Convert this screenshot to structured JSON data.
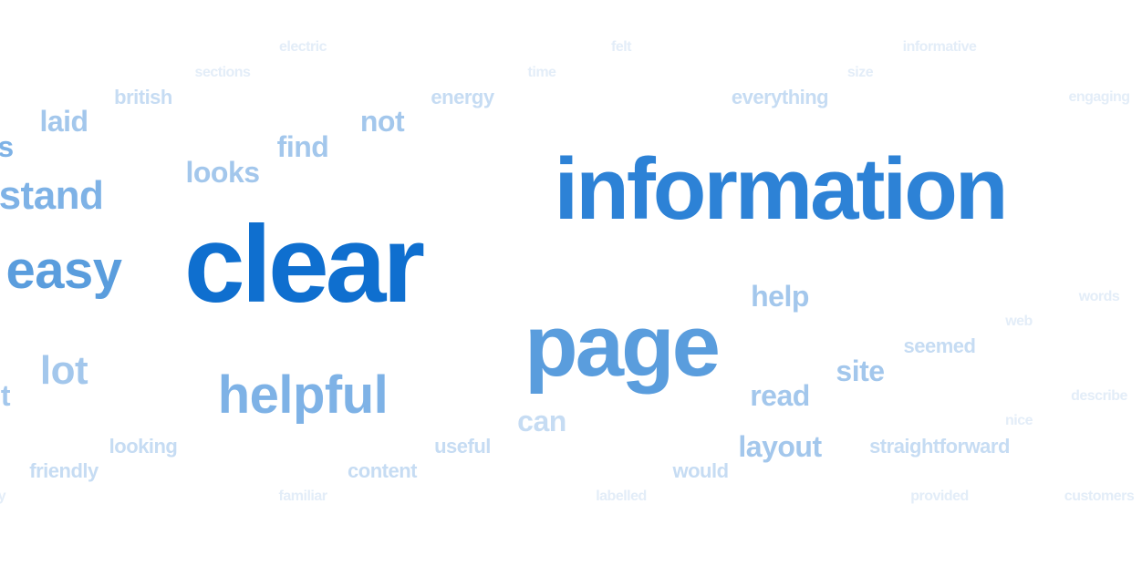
{
  "colors": {
    "background": "#ffffff",
    "shade_1": "#e3edf8",
    "shade_2": "#c6dcf3",
    "shade_3": "#a3c7ec",
    "shade_4": "#7eb2e6",
    "shade_5": "#5a9ddd",
    "shade_6": "#2d82d6",
    "shade_7": "#0f6fcf"
  },
  "words": {
    "electric": "electric",
    "felt": "felt",
    "informative": "informative",
    "sections": "sections",
    "time": "time",
    "size": "size",
    "british": "british",
    "energy": "energy",
    "everything": "everything",
    "engaging": "engaging",
    "laid": "laid",
    "not": "not",
    "s": "s",
    "find": "find",
    "looks": "looks",
    "stand": "stand",
    "information": "information",
    "easy": "easy",
    "clear": "clear",
    "help": "help",
    "words": "words",
    "web": "web",
    "page": "page",
    "seemed": "seemed",
    "lot": "lot",
    "site": "site",
    "t": "t",
    "helpful": "helpful",
    "read": "read",
    "describe": "describe",
    "can": "can",
    "nice": "nice",
    "looking": "looking",
    "useful": "useful",
    "layout": "layout",
    "straightforward": "straightforward",
    "friendly": "friendly",
    "content": "content",
    "would": "would",
    "y": "y",
    "familiar": "familiar",
    "labelled": "labelled",
    "provided": "provided",
    "customers": "customers"
  }
}
